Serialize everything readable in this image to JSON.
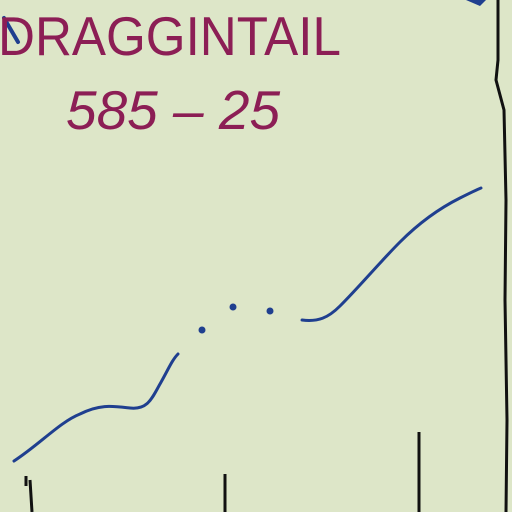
{
  "chart": {
    "background_color": "#dde6c8",
    "label_color": "#8c1e55",
    "route_color": "#1f3f8f",
    "tick_color": "#111111"
  },
  "waypoint": {
    "name": "DRAGGINTAIL",
    "altitude_label": "585 – 25"
  }
}
